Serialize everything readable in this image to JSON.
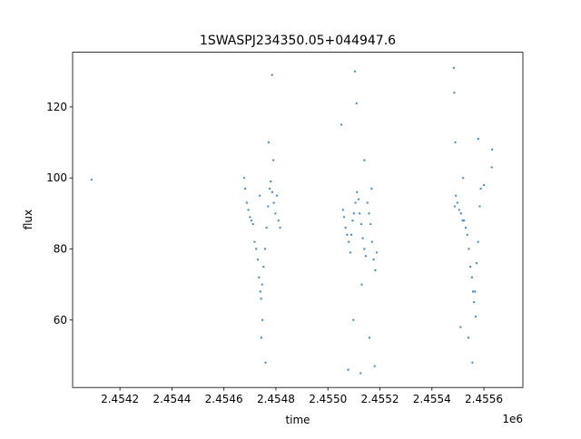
{
  "chart_data": {
    "type": "scatter",
    "title": "1SWASPJ234350.05+044947.6",
    "x_label": "time",
    "y_label": "flux",
    "x_offset_label": "1e6",
    "color": "#1f77b4",
    "x": [
      2454091,
      2454678,
      2454682,
      2454688,
      2454694,
      2454700,
      2454706,
      2454712,
      2454718,
      2454724,
      2454730,
      2454735,
      2454740,
      2454743,
      2454747,
      2454752,
      2454758,
      2454764,
      2454770,
      2454776,
      2454780,
      2454786,
      2454792,
      2454798,
      2454804,
      2454810,
      2454816,
      2454744,
      2454760,
      2454772,
      2454785,
      2454790,
      2454748,
      2454738,
      2455058,
      2455062,
      2455068,
      2455074,
      2455080,
      2455086,
      2455090,
      2455095,
      2455100,
      2455106,
      2455112,
      2455118,
      2455122,
      2455128,
      2455134,
      2455140,
      2455146,
      2455152,
      2455158,
      2455164,
      2455170,
      2455176,
      2455182,
      2455188,
      2455052,
      2455078,
      2455098,
      2455110,
      2455104,
      2455126,
      2455140,
      2455160,
      2455180,
      2455130,
      2455168,
      2455488,
      2455492,
      2455498,
      2455505,
      2455512,
      2455518,
      2455524,
      2455530,
      2455536,
      2455542,
      2455548,
      2455554,
      2455558,
      2455562,
      2455566,
      2455572,
      2455578,
      2455584,
      2455588,
      2455600,
      2455630,
      2455632,
      2455486,
      2455484,
      2455490,
      2455510,
      2455540,
      2455556,
      2455568,
      2455578,
      2455520
    ],
    "values": [
      99.5,
      100,
      97,
      93,
      91,
      89,
      88,
      87,
      82,
      80,
      77,
      72,
      68,
      66,
      70,
      75,
      80,
      86,
      92,
      97,
      99,
      96,
      93,
      90,
      95,
      88,
      86,
      55,
      48,
      110,
      129,
      105,
      60,
      95,
      91,
      89,
      86,
      84,
      82,
      79,
      84,
      88,
      90,
      93,
      96,
      94,
      90,
      87,
      83,
      80,
      78,
      93,
      90,
      87,
      82,
      77,
      74,
      79,
      115,
      46,
      60,
      121,
      130,
      45,
      105,
      55,
      47,
      70,
      97,
      92,
      95,
      93,
      91,
      90,
      88,
      88,
      86,
      84,
      80,
      75,
      72,
      68,
      65,
      68,
      76,
      82,
      92,
      97,
      98,
      103,
      108,
      124,
      131,
      110,
      58,
      55,
      48,
      61,
      111,
      100
    ],
    "xlim": [
      2454018,
      2455750
    ],
    "ylim": [
      41,
      135.4
    ],
    "xticks": [
      {
        "value": 2454200,
        "label": "2.4542"
      },
      {
        "value": 2454400,
        "label": "2.4544"
      },
      {
        "value": 2454600,
        "label": "2.4546"
      },
      {
        "value": 2454800,
        "label": "2.4548"
      },
      {
        "value": 2455000,
        "label": "2.4550"
      },
      {
        "value": 2455200,
        "label": "2.4552"
      },
      {
        "value": 2455400,
        "label": "2.4554"
      },
      {
        "value": 2455600,
        "label": "2.4556"
      }
    ],
    "yticks": [
      60,
      80,
      100,
      120
    ]
  }
}
